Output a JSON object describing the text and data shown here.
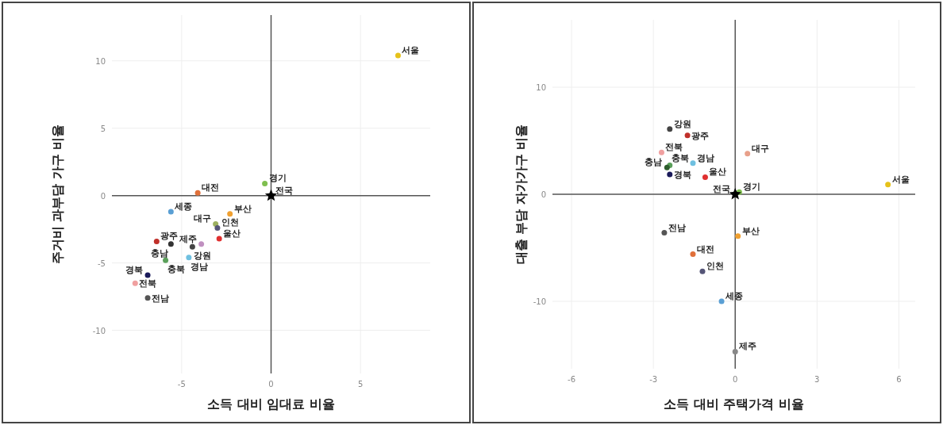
{
  "chart_data": [
    {
      "type": "scatter",
      "xlabel": "소득 대비 임대료 비율",
      "ylabel": "주거비 과부담 가구 비율",
      "xlim": [
        -8.9,
        8.9
      ],
      "ylim": [
        -13.2,
        13.4
      ],
      "xticks": [
        -5,
        0,
        5
      ],
      "yticks": [
        -10,
        -5,
        0,
        5,
        10
      ],
      "grid": true,
      "marker": "circle",
      "series": [
        {
          "name": "서울",
          "color": "#e6c21a",
          "x": [
            7.1
          ],
          "values": [
            10.4
          ]
        },
        {
          "name": "경기",
          "color": "#7fbf4f",
          "x": [
            -0.35
          ],
          "values": [
            0.9
          ]
        },
        {
          "name": "전국",
          "color": "#000000",
          "x": [
            0
          ],
          "values": [
            0
          ],
          "marker": "star"
        },
        {
          "name": "대전",
          "color": "#e0703a",
          "x": [
            -4.1
          ],
          "values": [
            0.2
          ]
        },
        {
          "name": "세종",
          "color": "#5a9fd4",
          "x": [
            -5.6
          ],
          "values": [
            -1.2
          ]
        },
        {
          "name": "부산",
          "color": "#f0a030",
          "x": [
            -2.3
          ],
          "values": [
            -1.35
          ]
        },
        {
          "name": "대구",
          "color": "#9cb060",
          "x": [
            -3.1
          ],
          "values": [
            -2.1
          ]
        },
        {
          "name": "인천",
          "color": "#555577",
          "x": [
            -3.0
          ],
          "values": [
            -2.4
          ]
        },
        {
          "name": "광주",
          "color": "#c0302a",
          "x": [
            -6.4
          ],
          "values": [
            -3.4
          ]
        },
        {
          "name": "충남",
          "color": "#333333",
          "x": [
            -5.6
          ],
          "values": [
            -3.6
          ]
        },
        {
          "name": "제주",
          "color": "#c090c0",
          "x": [
            -3.9
          ],
          "values": [
            -3.6
          ]
        },
        {
          "name": "울산",
          "color": "#e03030",
          "x": [
            -2.9
          ],
          "values": [
            -3.2
          ]
        },
        {
          "name": "강원",
          "color": "#444444",
          "x": [
            -4.4
          ],
          "values": [
            -3.8
          ]
        },
        {
          "name": "경남",
          "color": "#6fc0e0",
          "x": [
            -4.6
          ],
          "values": [
            -4.6
          ]
        },
        {
          "name": "충북",
          "color": "#5aa05a",
          "x": [
            -5.9
          ],
          "values": [
            -4.8
          ]
        },
        {
          "name": "경북",
          "color": "#1a1a5a",
          "x": [
            -6.9
          ],
          "values": [
            -5.9
          ]
        },
        {
          "name": "전북",
          "color": "#f0a0a0",
          "x": [
            -7.6
          ],
          "values": [
            -6.5
          ]
        },
        {
          "name": "전남",
          "color": "#555555",
          "x": [
            -6.9
          ],
          "values": [
            -7.6
          ]
        }
      ]
    },
    {
      "type": "scatter",
      "xlabel": "소득 대비 주택가격 비율",
      "ylabel": "대출 부담 자가가구 비율",
      "xlim": [
        -6.7,
        6.6
      ],
      "ylim": [
        -16.3,
        16.3
      ],
      "xticks": [
        -6,
        -3,
        0,
        3,
        6
      ],
      "yticks": [
        -10,
        0,
        10
      ],
      "grid": true,
      "marker": "circle",
      "series": [
        {
          "name": "강원",
          "color": "#444444",
          "x": [
            -2.4
          ],
          "values": [
            6.1
          ]
        },
        {
          "name": "광주",
          "color": "#c0302a",
          "x": [
            -1.75
          ],
          "values": [
            5.5
          ]
        },
        {
          "name": "전북",
          "color": "#f0a0a0",
          "x": [
            -2.7
          ],
          "values": [
            3.9
          ]
        },
        {
          "name": "대구",
          "color": "#e8a08a",
          "x": [
            0.45
          ],
          "values": [
            3.8
          ]
        },
        {
          "name": "경남",
          "color": "#6fc0e0",
          "x": [
            -1.55
          ],
          "values": [
            2.9
          ]
        },
        {
          "name": "충북",
          "color": "#5aa05a",
          "x": [
            -2.4
          ],
          "values": [
            2.7
          ]
        },
        {
          "name": "충남",
          "color": "#2e5e2e",
          "x": [
            -2.5
          ],
          "values": [
            2.5
          ]
        },
        {
          "name": "경북",
          "color": "#1a1a5a",
          "x": [
            -2.4
          ],
          "values": [
            1.85
          ]
        },
        {
          "name": "울산",
          "color": "#e03030",
          "x": [
            -1.1
          ],
          "values": [
            1.6
          ]
        },
        {
          "name": "경기",
          "color": "#7fbf4f",
          "x": [
            0.15
          ],
          "values": [
            0.2
          ]
        },
        {
          "name": "서울",
          "color": "#e6c21a",
          "x": [
            5.6
          ],
          "values": [
            0.9
          ]
        },
        {
          "name": "전국",
          "color": "#000000",
          "x": [
            0
          ],
          "values": [
            0
          ],
          "marker": "star"
        },
        {
          "name": "부산",
          "color": "#f0a030",
          "x": [
            0.1
          ],
          "values": [
            -3.9
          ]
        },
        {
          "name": "전남",
          "color": "#555555",
          "x": [
            -2.6
          ],
          "values": [
            -3.6
          ]
        },
        {
          "name": "대전",
          "color": "#e0703a",
          "x": [
            -1.55
          ],
          "values": [
            -5.6
          ]
        },
        {
          "name": "인천",
          "color": "#555577",
          "x": [
            -1.2
          ],
          "values": [
            -7.2
          ]
        },
        {
          "name": "세종",
          "color": "#5a9fd4",
          "x": [
            -0.5
          ],
          "values": [
            -10.0
          ]
        },
        {
          "name": "제주",
          "color": "#888888",
          "x": [
            0.0
          ],
          "values": [
            -14.7
          ]
        }
      ]
    }
  ]
}
